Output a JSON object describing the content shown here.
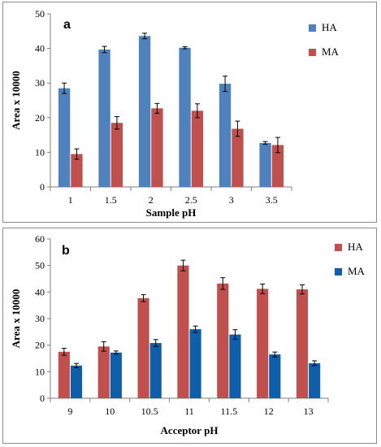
{
  "chart_data": [
    {
      "type": "bar",
      "panel_label": "a",
      "xlabel": "Sample pH",
      "ylabel": "Area  x 10000",
      "categories": [
        "1",
        "1.5",
        "2",
        "2.5",
        "3",
        "3.5"
      ],
      "ylim": [
        0,
        50
      ],
      "yticks": [
        0,
        10,
        20,
        30,
        40,
        50
      ],
      "legend_position": "right",
      "series": [
        {
          "name": "HA",
          "color": "#4f81bd",
          "values": [
            28.5,
            39.7,
            43.6,
            40.2,
            29.8,
            12.7
          ],
          "errors": [
            1.5,
            0.9,
            0.8,
            0.3,
            2.2,
            0.4
          ]
        },
        {
          "name": "MA",
          "color": "#c0504d",
          "values": [
            9.5,
            18.5,
            22.7,
            22.0,
            16.8,
            12.1
          ],
          "errors": [
            1.5,
            1.8,
            1.4,
            2.0,
            2.2,
            2.2
          ]
        }
      ]
    },
    {
      "type": "bar",
      "panel_label": "b",
      "xlabel": "Acceptor pH",
      "ylabel": "Area  x 10000",
      "categories": [
        "9",
        "10",
        "10.5",
        "11",
        "11.5",
        "12",
        "13"
      ],
      "ylim": [
        0,
        60
      ],
      "yticks": [
        0,
        10,
        20,
        30,
        40,
        50,
        60
      ],
      "legend_position": "right",
      "series": [
        {
          "name": "HA",
          "color": "#c0504d",
          "values": [
            17.5,
            19.5,
            37.7,
            50.0,
            43.2,
            41.2,
            41.0
          ],
          "errors": [
            1.3,
            1.8,
            1.3,
            2.0,
            2.2,
            1.8,
            1.7
          ]
        },
        {
          "name": "MA",
          "color": "#0f5fa8",
          "values": [
            12.3,
            17.2,
            20.8,
            26.0,
            24.0,
            16.5,
            13.2
          ],
          "errors": [
            0.8,
            0.6,
            1.3,
            1.2,
            1.8,
            0.9,
            0.9
          ]
        }
      ]
    }
  ]
}
